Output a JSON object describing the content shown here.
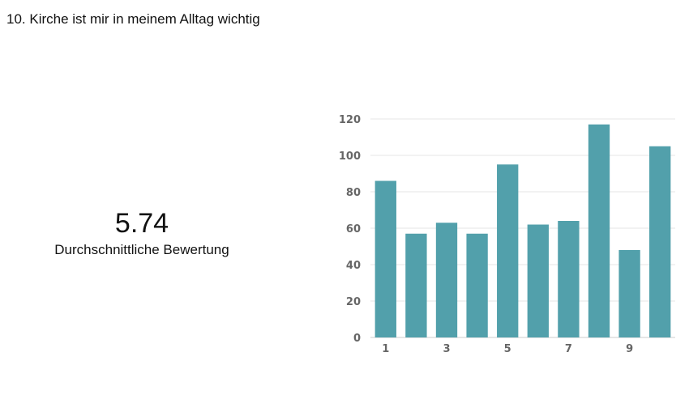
{
  "question": {
    "title": "10.  Kirche ist mir in meinem Alltag wichtig"
  },
  "summary": {
    "value": "5.74",
    "label": "Durchschnittliche Bewertung"
  },
  "colors": {
    "bar": "#52a0ab",
    "grid": "#e6e6e6",
    "axis": "#cccccc",
    "tick": "#666666"
  },
  "chart_data": {
    "type": "bar",
    "categories": [
      "1",
      "2",
      "3",
      "4",
      "5",
      "6",
      "7",
      "8",
      "9",
      "10"
    ],
    "x_tick_labels": [
      "1",
      "",
      "3",
      "",
      "5",
      "",
      "7",
      "",
      "9",
      ""
    ],
    "values": [
      86,
      57,
      63,
      57,
      95,
      62,
      64,
      117,
      48,
      105
    ],
    "ylim": [
      0,
      120
    ],
    "yticks": [
      0,
      20,
      40,
      60,
      80,
      100,
      120
    ],
    "grid": true,
    "legend": "none"
  }
}
